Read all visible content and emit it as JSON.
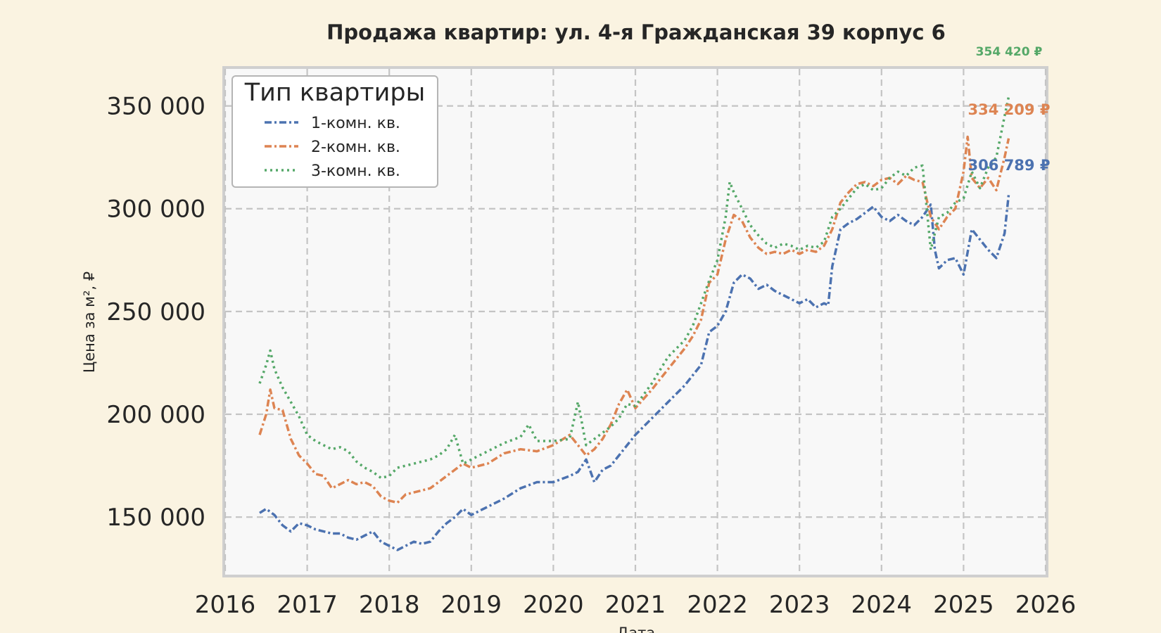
{
  "chart_data": {
    "type": "line",
    "title": "Продажа квартир: ул. 4-я Гражданская 39 корпус 6",
    "xlabel": "Дата",
    "ylabel": "Цена за м², ₽",
    "xlim": [
      2016.0,
      2026.0
    ],
    "ylim": [
      122000,
      368000
    ],
    "x_ticks": [
      {
        "value": 2016,
        "label": "2016"
      },
      {
        "value": 2017,
        "label": "2017"
      },
      {
        "value": 2018,
        "label": "2018"
      },
      {
        "value": 2019,
        "label": "2019"
      },
      {
        "value": 2020,
        "label": "2020"
      },
      {
        "value": 2021,
        "label": "2021"
      },
      {
        "value": 2022,
        "label": "2022"
      },
      {
        "value": 2023,
        "label": "2023"
      },
      {
        "value": 2024,
        "label": "2024"
      },
      {
        "value": 2025,
        "label": "2025"
      },
      {
        "value": 2026,
        "label": "2026"
      }
    ],
    "y_ticks": [
      {
        "value": 150000,
        "label": "150 000"
      },
      {
        "value": 200000,
        "label": "200 000"
      },
      {
        "value": 250000,
        "label": "250 000"
      },
      {
        "value": 300000,
        "label": "300 000"
      },
      {
        "value": 350000,
        "label": "350 000"
      }
    ],
    "grid": true,
    "legend": {
      "title": "Тип квартиры",
      "placement": "upper-left"
    },
    "series": [
      {
        "name": "1-комн. кв.",
        "color": "#4c72b0",
        "dash": "dashdot",
        "end_label": "306 789 ₽",
        "x": [
          2016.42,
          2016.5,
          2016.6,
          2016.7,
          2016.8,
          2016.9,
          2017.0,
          2017.1,
          2017.2,
          2017.3,
          2017.4,
          2017.5,
          2017.6,
          2017.7,
          2017.8,
          2017.9,
          2018.0,
          2018.1,
          2018.2,
          2018.3,
          2018.4,
          2018.5,
          2018.6,
          2018.7,
          2018.8,
          2018.9,
          2019.0,
          2019.2,
          2019.4,
          2019.6,
          2019.8,
          2020.0,
          2020.2,
          2020.3,
          2020.4,
          2020.5,
          2020.6,
          2020.7,
          2020.8,
          2020.9,
          2021.0,
          2021.2,
          2021.4,
          2021.6,
          2021.7,
          2021.8,
          2021.9,
          2022.0,
          2022.1,
          2022.2,
          2022.3,
          2022.4,
          2022.5,
          2022.6,
          2022.7,
          2022.8,
          2022.9,
          2023.0,
          2023.1,
          2023.2,
          2023.3,
          2023.35,
          2023.4,
          2023.5,
          2023.6,
          2023.7,
          2023.8,
          2023.9,
          2024.0,
          2024.1,
          2024.2,
          2024.3,
          2024.4,
          2024.5,
          2024.6,
          2024.65,
          2024.7,
          2024.8,
          2024.9,
          2025.0,
          2025.1,
          2025.2,
          2025.3,
          2025.4,
          2025.5,
          2025.55
        ],
        "y": [
          152000,
          154000,
          151000,
          146000,
          143000,
          147000,
          146000,
          144000,
          143000,
          142000,
          142000,
          140000,
          139000,
          141000,
          143000,
          138000,
          136000,
          134000,
          136000,
          138000,
          137000,
          138000,
          143000,
          147000,
          150000,
          154000,
          151000,
          155000,
          159000,
          164000,
          167000,
          167000,
          170000,
          172000,
          178000,
          167000,
          173000,
          175000,
          180000,
          185000,
          190000,
          198000,
          206000,
          214000,
          219000,
          224000,
          240000,
          243000,
          250000,
          264000,
          268000,
          266000,
          261000,
          263000,
          260000,
          258000,
          256000,
          254000,
          256000,
          252000,
          254000,
          253000,
          272000,
          290000,
          293000,
          295000,
          298000,
          301000,
          296000,
          294000,
          297000,
          294000,
          292000,
          296000,
          302000,
          280000,
          271000,
          275000,
          276000,
          268000,
          290000,
          285000,
          280000,
          276000,
          288000,
          306789
        ]
      },
      {
        "name": "2-комн. кв.",
        "color": "#dd8452",
        "dash": "dashdot",
        "end_label": "334 209 ₽",
        "x": [
          2016.42,
          2016.5,
          2016.55,
          2016.6,
          2016.7,
          2016.8,
          2016.9,
          2017.0,
          2017.1,
          2017.2,
          2017.3,
          2017.4,
          2017.5,
          2017.6,
          2017.7,
          2017.8,
          2017.9,
          2018.0,
          2018.1,
          2018.2,
          2018.3,
          2018.4,
          2018.5,
          2018.6,
          2018.7,
          2018.8,
          2018.9,
          2019.0,
          2019.2,
          2019.4,
          2019.6,
          2019.8,
          2020.0,
          2020.2,
          2020.3,
          2020.4,
          2020.5,
          2020.6,
          2020.7,
          2020.8,
          2020.9,
          2021.0,
          2021.2,
          2021.4,
          2021.6,
          2021.7,
          2021.8,
          2021.9,
          2022.0,
          2022.1,
          2022.2,
          2022.3,
          2022.4,
          2022.5,
          2022.6,
          2022.7,
          2022.8,
          2022.9,
          2023.0,
          2023.1,
          2023.2,
          2023.3,
          2023.4,
          2023.5,
          2023.6,
          2023.7,
          2023.8,
          2023.9,
          2024.0,
          2024.1,
          2024.2,
          2024.3,
          2024.4,
          2024.5,
          2024.6,
          2024.7,
          2024.8,
          2024.9,
          2025.0,
          2025.05,
          2025.1,
          2025.2,
          2025.3,
          2025.4,
          2025.5,
          2025.55
        ],
        "y": [
          190000,
          200000,
          212000,
          203000,
          202000,
          188000,
          180000,
          176000,
          171000,
          170000,
          164000,
          166000,
          168000,
          166000,
          167000,
          165000,
          160000,
          158000,
          157000,
          161000,
          162000,
          163000,
          164000,
          167000,
          170000,
          173000,
          176000,
          174000,
          176000,
          181000,
          183000,
          182000,
          185000,
          190000,
          185000,
          180000,
          183000,
          188000,
          195000,
          205000,
          212000,
          203000,
          212000,
          222000,
          232000,
          238000,
          246000,
          264000,
          268000,
          285000,
          297000,
          294000,
          286000,
          281000,
          278000,
          279000,
          278000,
          280000,
          278000,
          280000,
          279000,
          282000,
          290000,
          303000,
          308000,
          312000,
          313000,
          311000,
          314000,
          315000,
          312000,
          316000,
          314000,
          313000,
          296000,
          290000,
          296000,
          300000,
          318000,
          335000,
          315000,
          310000,
          315000,
          309000,
          325000,
          334209
        ]
      },
      {
        "name": "3-комн. кв.",
        "color": "#55a868",
        "dash": "dotted",
        "end_label": "354 420 ₽",
        "x": [
          2016.42,
          2016.5,
          2016.55,
          2016.6,
          2016.7,
          2016.8,
          2016.9,
          2017.0,
          2017.1,
          2017.2,
          2017.3,
          2017.4,
          2017.5,
          2017.6,
          2017.7,
          2017.8,
          2017.9,
          2018.0,
          2018.1,
          2018.2,
          2018.3,
          2018.4,
          2018.5,
          2018.6,
          2018.7,
          2018.8,
          2018.9,
          2019.0,
          2019.2,
          2019.4,
          2019.6,
          2019.7,
          2019.8,
          2020.0,
          2020.2,
          2020.3,
          2020.4,
          2020.5,
          2020.6,
          2020.7,
          2020.8,
          2020.9,
          2021.0,
          2021.2,
          2021.4,
          2021.6,
          2021.7,
          2021.8,
          2021.9,
          2022.0,
          2022.1,
          2022.15,
          2022.2,
          2022.3,
          2022.4,
          2022.5,
          2022.6,
          2022.7,
          2022.8,
          2022.9,
          2023.0,
          2023.1,
          2023.2,
          2023.3,
          2023.4,
          2023.5,
          2023.6,
          2023.7,
          2023.8,
          2023.9,
          2024.0,
          2024.1,
          2024.2,
          2024.3,
          2024.4,
          2024.5,
          2024.6,
          2024.7,
          2024.8,
          2024.9,
          2025.0,
          2025.1,
          2025.2,
          2025.3,
          2025.4,
          2025.5,
          2025.55
        ],
        "y": [
          215000,
          224000,
          231000,
          222000,
          213000,
          206000,
          199000,
          190000,
          187000,
          185000,
          183000,
          184000,
          182000,
          177000,
          174000,
          172000,
          169000,
          170000,
          174000,
          175000,
          176000,
          177000,
          178000,
          180000,
          183000,
          190000,
          176000,
          178000,
          182000,
          186000,
          189000,
          195000,
          187000,
          187000,
          188000,
          206000,
          185000,
          188000,
          191000,
          194000,
          198000,
          205000,
          204000,
          215000,
          228000,
          236000,
          243000,
          254000,
          265000,
          275000,
          296000,
          313000,
          308000,
          300000,
          292000,
          287000,
          283000,
          281000,
          283000,
          282000,
          280000,
          282000,
          281000,
          284000,
          296000,
          300000,
          305000,
          310000,
          312000,
          309000,
          310000,
          315000,
          318000,
          316000,
          320000,
          321000,
          280000,
          296000,
          298000,
          303000,
          305000,
          318000,
          310000,
          320000,
          325000,
          345000,
          354420
        ]
      }
    ]
  }
}
